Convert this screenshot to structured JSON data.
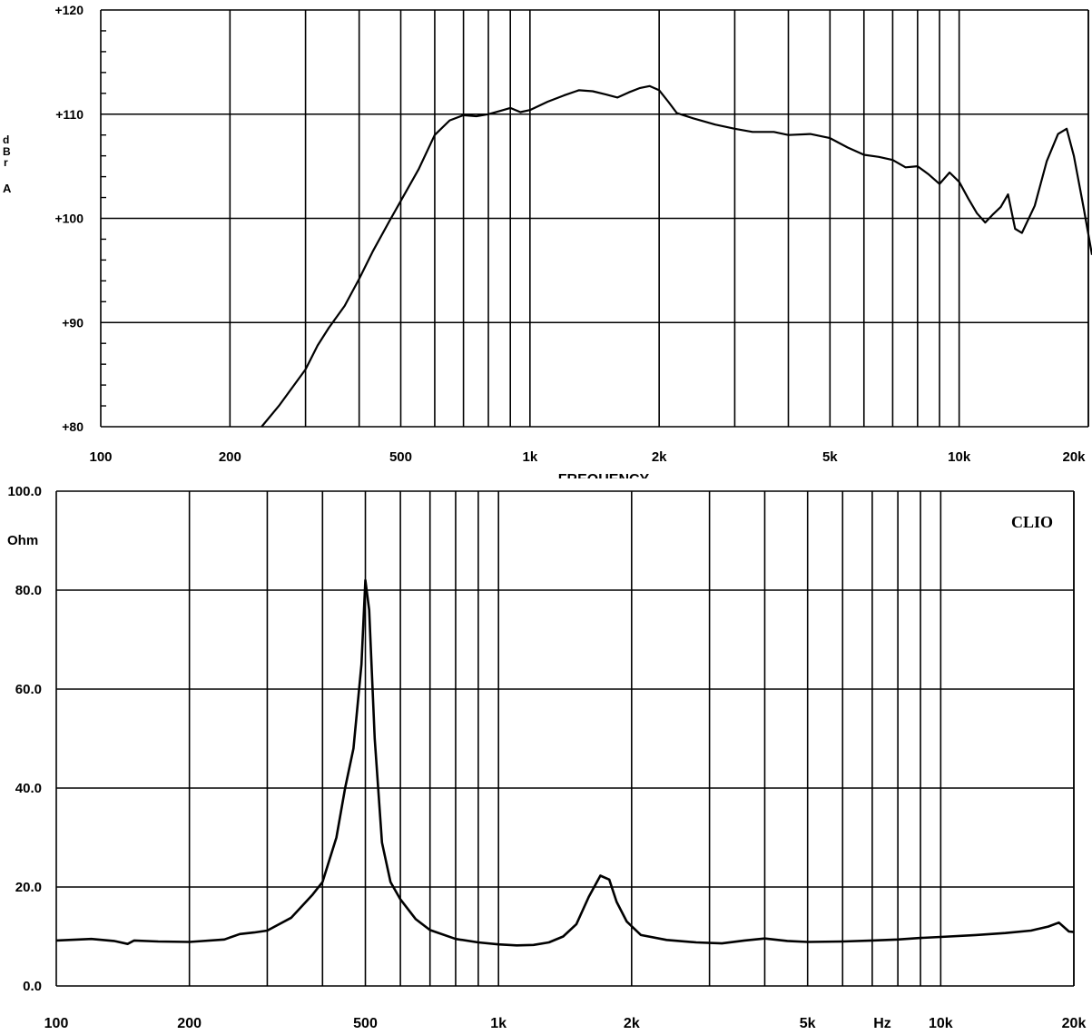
{
  "chart_data": [
    {
      "type": "line",
      "title": "",
      "xlabel": "FREQUENCY",
      "ylabel": "dBrA",
      "ylabel_chars": [
        "d",
        "B",
        "r",
        "A"
      ],
      "x_scale": "log",
      "xlim": [
        100,
        20000
      ],
      "ylim": [
        80,
        120
      ],
      "grid": true,
      "x_ticks": [
        100,
        200,
        500,
        1000,
        2000,
        5000,
        10000,
        20000
      ],
      "x_tick_labels": [
        "100",
        "200",
        "500",
        "1k",
        "2k",
        "5k",
        "10k",
        "20k"
      ],
      "y_ticks": [
        80,
        90,
        100,
        110,
        120
      ],
      "y_tick_labels": [
        "+80",
        "+90",
        "+100",
        "+110",
        "+120"
      ],
      "series": [
        {
          "color": "#000000",
          "x": [
            237,
            260,
            300,
            320,
            340,
            370,
            400,
            430,
            470,
            510,
            550,
            600,
            650,
            700,
            750,
            800,
            850,
            900,
            950,
            1000,
            1100,
            1200,
            1300,
            1400,
            1500,
            1600,
            1700,
            1800,
            1900,
            2000,
            2100,
            2200,
            2400,
            2700,
            3000,
            3300,
            3700,
            4000,
            4500,
            5000,
            5500,
            6000,
            6500,
            7000,
            7500,
            8000,
            8500,
            9000,
            9500,
            10000,
            10500,
            11000,
            11500,
            12000,
            12500,
            13000,
            13500,
            14000,
            15000,
            16000,
            17000,
            17800,
            18500,
            19500,
            20500
          ],
          "y": [
            80,
            82,
            85.5,
            87.8,
            89.5,
            91.6,
            94.2,
            96.8,
            99.7,
            102.3,
            104.7,
            108,
            109.4,
            109.9,
            109.8,
            110,
            110.3,
            110.6,
            110.2,
            110.4,
            111.2,
            111.8,
            112.3,
            112.2,
            111.9,
            111.6,
            112.1,
            112.5,
            112.7,
            112.3,
            111.2,
            110.1,
            109.6,
            109,
            108.6,
            108.3,
            108.3,
            108,
            108.1,
            107.7,
            106.8,
            106.1,
            105.9,
            105.6,
            104.9,
            105,
            104.2,
            103.3,
            104.4,
            103.5,
            101.9,
            100.5,
            99.6,
            100.4,
            101.1,
            102.3,
            99,
            98.6,
            101.2,
            105.5,
            108.1,
            108.6,
            106,
            101,
            96.5
          ]
        }
      ]
    },
    {
      "type": "line",
      "title": "",
      "brand_label": "CLIO",
      "xlabel": "Hz",
      "ylabel": "Ohm",
      "x_scale": "log",
      "xlim": [
        100,
        20000
      ],
      "ylim": [
        0,
        100
      ],
      "grid": true,
      "x_ticks": [
        100,
        200,
        500,
        1000,
        2000,
        5000,
        10000,
        20000
      ],
      "x_tick_labels": [
        "100",
        "200",
        "500",
        "1k",
        "2k",
        "5k",
        "10k",
        "20k"
      ],
      "y_ticks": [
        0,
        20,
        40,
        60,
        80,
        100
      ],
      "y_tick_labels": [
        "0.0",
        "20.0",
        "40.0",
        "60.0",
        "80.0",
        "100.0"
      ],
      "series": [
        {
          "color": "#000000",
          "x": [
            100,
            120,
            135,
            145,
            150,
            170,
            200,
            240,
            260,
            280,
            300,
            340,
            380,
            400,
            430,
            450,
            470,
            490,
            500,
            510,
            525,
            545,
            570,
            600,
            650,
            700,
            800,
            900,
            1000,
            1100,
            1200,
            1300,
            1400,
            1500,
            1600,
            1700,
            1780,
            1850,
            1950,
            2100,
            2400,
            2800,
            3200,
            3600,
            4000,
            4500,
            5000,
            6000,
            7000,
            8000,
            9000,
            10000,
            12000,
            14000,
            16000,
            17500,
            18500,
            19500,
            20000
          ],
          "y": [
            9.2,
            9.5,
            9.1,
            8.5,
            9.2,
            9,
            8.9,
            9.4,
            10.5,
            10.8,
            11.2,
            13.8,
            18.5,
            21,
            30,
            40,
            48,
            65,
            82,
            76,
            50,
            29,
            21,
            17.5,
            13.5,
            11.3,
            9.5,
            8.8,
            8.4,
            8.2,
            8.3,
            8.8,
            10,
            12.5,
            18,
            22.3,
            21.5,
            17,
            13,
            10.3,
            9.3,
            8.8,
            8.6,
            9.2,
            9.6,
            9.1,
            8.9,
            9,
            9.2,
            9.4,
            9.7,
            9.9,
            10.3,
            10.7,
            11.2,
            12,
            12.8,
            11,
            10.9
          ]
        }
      ]
    }
  ]
}
